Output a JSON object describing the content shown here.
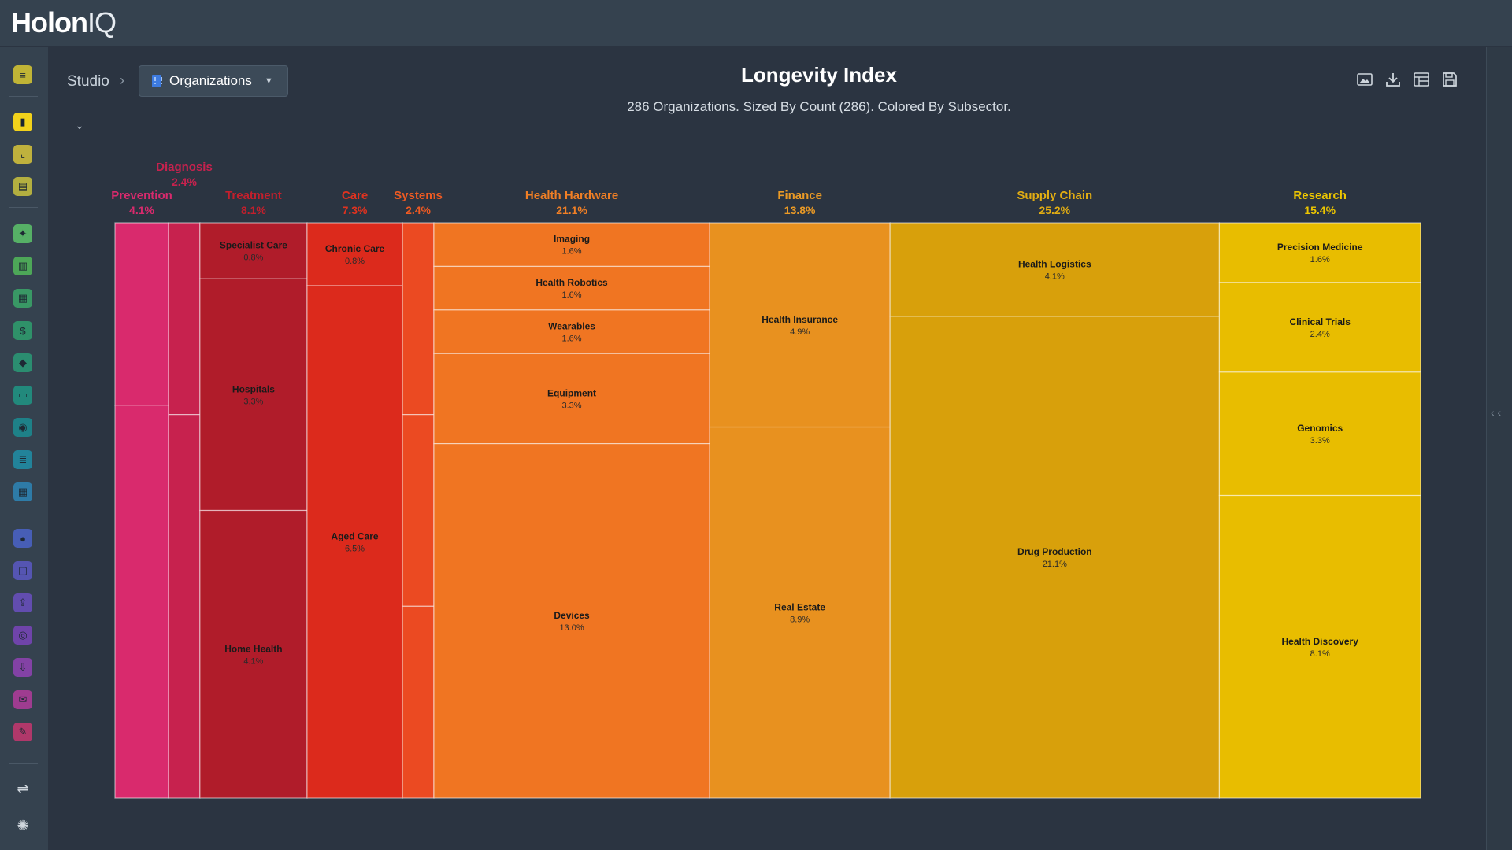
{
  "app": {
    "logo_main": "Holon",
    "logo_iq": "IQ"
  },
  "breadcrumb": {
    "root": "Studio",
    "current": "Organizations"
  },
  "header": {
    "title": "Longevity Index",
    "subtitle": "286 Organizations. Sized By Count (286). Colored By Subsector."
  },
  "sidebar_icons": [
    {
      "name": "list-icon",
      "color": "#d9c832"
    },
    {
      "name": "chart-icon",
      "color": "#f2d21b"
    },
    {
      "name": "line-chart-icon",
      "color": "#d8c53a"
    },
    {
      "name": "document-icon",
      "color": "#c9c23e"
    },
    {
      "name": "sparkle-icon",
      "color": "#5cc46b"
    },
    {
      "name": "building-icon",
      "color": "#52b95a"
    },
    {
      "name": "table-icon",
      "color": "#3aa86a"
    },
    {
      "name": "dollar-icon",
      "color": "#2f9f6e"
    },
    {
      "name": "handshake-icon",
      "color": "#2a9b76"
    },
    {
      "name": "id-card-icon",
      "color": "#1f9684"
    },
    {
      "name": "person-icon",
      "color": "#1a8d92"
    },
    {
      "name": "database-icon",
      "color": "#1f8fa8"
    },
    {
      "name": "calendar-icon",
      "color": "#2d86b7"
    },
    {
      "name": "globe-icon",
      "color": "#4b63c9"
    },
    {
      "name": "clipboard-icon",
      "color": "#5b59c4"
    },
    {
      "name": "upload-icon",
      "color": "#6a4fc0"
    },
    {
      "name": "users-icon",
      "color": "#7a45bb"
    },
    {
      "name": "download-icon",
      "color": "#9142b5"
    },
    {
      "name": "mail-icon",
      "color": "#b23c9c"
    },
    {
      "name": "edit-icon",
      "color": "#c6376f"
    },
    {
      "name": "layout-icon",
      "color": "#cfd6dd"
    },
    {
      "name": "settings-icon",
      "color": "#cfd6dd"
    }
  ],
  "chart_data": {
    "type": "treemap",
    "title": "Longevity Index",
    "total": 286,
    "sectors": [
      {
        "name": "Prevention",
        "pct": "4.1%",
        "color": "#d92a6d",
        "children": [
          {
            "name": "",
            "pct": "",
            "value": 1.3
          },
          {
            "name": "",
            "pct": "",
            "value": 2.8
          }
        ]
      },
      {
        "name": "Diagnosis",
        "pct": "2.4%",
        "color": "#c7224e",
        "children": [
          {
            "name": "",
            "pct": "",
            "value": 0.8
          },
          {
            "name": "",
            "pct": "",
            "value": 1.6
          }
        ]
      },
      {
        "name": "Treatment",
        "pct": "8.1%",
        "color": "#b01c2a",
        "children": [
          {
            "name": "Specialist Care",
            "pct": "0.8%",
            "value": 0.8
          },
          {
            "name": "Hospitals",
            "pct": "3.3%",
            "value": 3.3
          },
          {
            "name": "Home Health",
            "pct": "4.1%",
            "value": 4.1
          }
        ]
      },
      {
        "name": "Care",
        "pct": "7.3%",
        "color": "#dc2a1c",
        "children": [
          {
            "name": "Chronic Care",
            "pct": "0.8%",
            "value": 0.8
          },
          {
            "name": "Aged Care",
            "pct": "6.5%",
            "value": 6.5
          }
        ]
      },
      {
        "name": "Systems",
        "pct": "2.4%",
        "color": "#eb4a22",
        "children": [
          {
            "name": "",
            "pct": "",
            "value": 0.8
          },
          {
            "name": "",
            "pct": "",
            "value": 0.8
          },
          {
            "name": "",
            "pct": "",
            "value": 0.8
          }
        ]
      },
      {
        "name": "Health Hardware",
        "pct": "21.1%",
        "color": "#f07522",
        "children": [
          {
            "name": "Imaging",
            "pct": "1.6%",
            "value": 1.6
          },
          {
            "name": "Health Robotics",
            "pct": "1.6%",
            "value": 1.6
          },
          {
            "name": "Wearables",
            "pct": "1.6%",
            "value": 1.6
          },
          {
            "name": "Equipment",
            "pct": "3.3%",
            "value": 3.3
          },
          {
            "name": "Devices",
            "pct": "13.0%",
            "value": 13.0
          }
        ]
      },
      {
        "name": "Finance",
        "pct": "13.8%",
        "color": "#e8911f",
        "children": [
          {
            "name": "Health Insurance",
            "pct": "4.9%",
            "value": 4.9
          },
          {
            "name": "Real Estate",
            "pct": "8.9%",
            "value": 8.9
          }
        ]
      },
      {
        "name": "Supply Chain",
        "pct": "25.2%",
        "color": "#d8a00b",
        "children": [
          {
            "name": "Health Logistics",
            "pct": "4.1%",
            "value": 4.1
          },
          {
            "name": "Drug Production",
            "pct": "21.1%",
            "value": 21.1
          }
        ]
      },
      {
        "name": "Research",
        "pct": "15.4%",
        "color": "#e8bd00",
        "children": [
          {
            "name": "Precision Medicine",
            "pct": "1.6%",
            "value": 1.6
          },
          {
            "name": "Clinical Trials",
            "pct": "2.4%",
            "value": 2.4
          },
          {
            "name": "Genomics",
            "pct": "3.3%",
            "value": 3.3
          },
          {
            "name": "Health Discovery",
            "pct": "8.1%",
            "value": 8.1
          }
        ]
      }
    ]
  },
  "sector_label_colors": {
    "Prevention": "#d92a6d",
    "Diagnosis": "#c7224e",
    "Treatment": "#c31f2c",
    "Care": "#e0321f",
    "Systems": "#ee5a22",
    "Health Hardware": "#f07f25",
    "Finance": "#eb9a25",
    "Supply Chain": "#e2ad13",
    "Research": "#edc600"
  }
}
